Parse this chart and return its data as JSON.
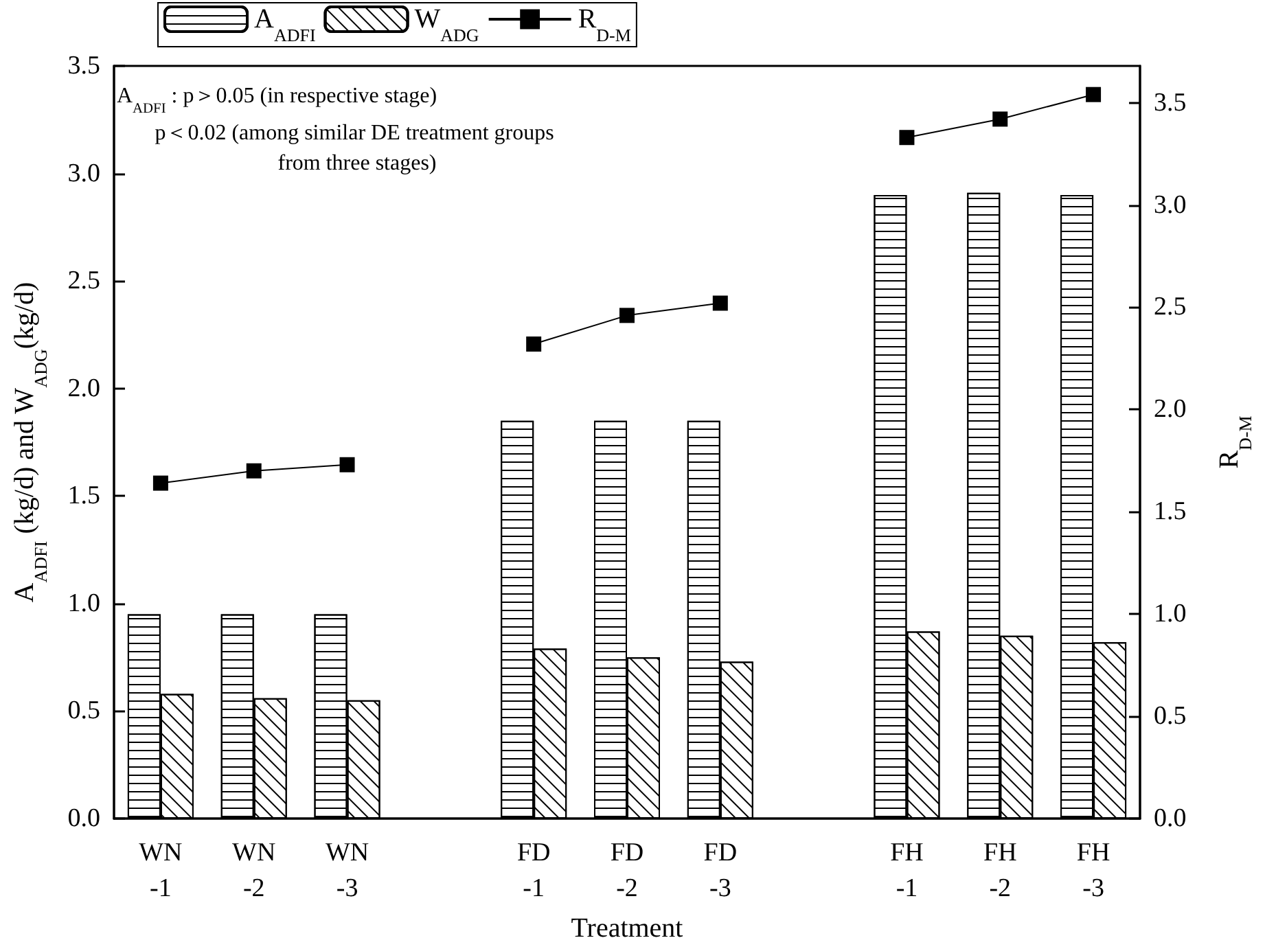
{
  "chart_data": {
    "type": "bar",
    "xlabel": "Treatment",
    "ylabel": "A$_{ADFI}$ (kg/d) and W$_{ADG}$(kg/d)",
    "y2label": "R$_{D-M}$",
    "categories": [
      "WN\n-1",
      "WN\n-2",
      "WN\n-3",
      null,
      "FD\n-1",
      "FD\n-2",
      "FD\n-3",
      null,
      "FH\n-1",
      "FH\n-2",
      "FH\n-3"
    ],
    "series": [
      {
        "name": "A$_{ADFI}$",
        "color": "#000000",
        "values": [
          0.95,
          0.95,
          0.95,
          null,
          1.85,
          1.85,
          1.85,
          null,
          2.9,
          2.91,
          2.9
        ]
      },
      {
        "name": "W$_{ADG}$",
        "color": "#000000",
        "values": [
          0.58,
          0.56,
          0.55,
          null,
          0.79,
          0.75,
          0.73,
          null,
          0.87,
          0.85,
          0.82
        ]
      },
      {
        "name": "R$_{D-M}$",
        "type": "line",
        "axis": "y2",
        "color": "#000000",
        "marker": "square",
        "line_style": "solid",
        "values": [
          1.64,
          1.7,
          1.73,
          null,
          2.32,
          2.46,
          2.52,
          null,
          3.33,
          3.42,
          3.54
        ]
      }
    ],
    "ylim": [
      0,
      3.5
    ],
    "yticks": [
      {
        "value": 0,
        "label": "0.0"
      },
      {
        "value": 0.5,
        "label": "0.5"
      },
      {
        "value": 1,
        "label": "1.0"
      },
      {
        "value": 1.5,
        "label": "1.5"
      },
      {
        "value": 2,
        "label": "2.0"
      },
      {
        "value": 2.5,
        "label": "2.5"
      },
      {
        "value": 3,
        "label": "3.0"
      },
      {
        "value": 3.5,
        "label": "3.5"
      }
    ],
    "y2lim": [
      0,
      3.68
    ],
    "y2ticks": [
      {
        "value": 0,
        "label": "0.0"
      },
      {
        "value": 0.5,
        "label": "0.5"
      },
      {
        "value": 1,
        "label": "1.0"
      },
      {
        "value": 1.5,
        "label": "1.5"
      },
      {
        "value": 2,
        "label": "2.0"
      },
      {
        "value": 2.5,
        "label": "2.5"
      },
      {
        "value": 3,
        "label": "3.0"
      },
      {
        "value": 3.5,
        "label": "3.5"
      }
    ],
    "annotations": [
      "A$_{ADFI}$ : p＞0.05 (in respective stage)",
      "p＜0.02 (among similar DE treatment groups from three stages)"
    ],
    "legend": "top left",
    "grid": false
  }
}
